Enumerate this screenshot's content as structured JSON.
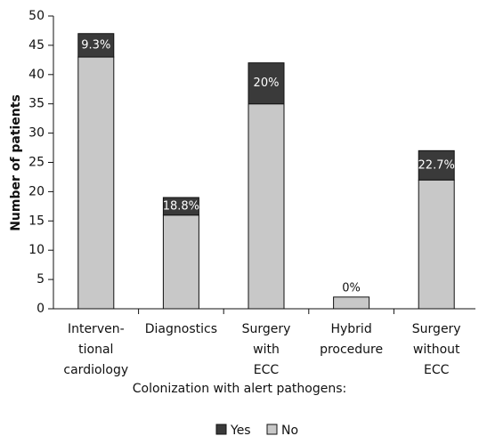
{
  "chart_data": {
    "type": "stacked-bar",
    "ylabel": "Number of patients",
    "categories": [
      [
        "Interven-",
        "tional",
        "cardiology"
      ],
      [
        "Diagnostics"
      ],
      [
        "Surgery",
        "with",
        "ECC"
      ],
      [
        "Hybrid",
        "procedure"
      ],
      [
        "Surgery",
        "without",
        "ECC"
      ]
    ],
    "series": [
      {
        "name": "No",
        "color": "#c8c8c8",
        "values": [
          43,
          16,
          35,
          2,
          22
        ]
      },
      {
        "name": "Yes",
        "color": "#3a3a3a",
        "values": [
          4,
          3,
          7,
          0,
          5
        ]
      }
    ],
    "annotations": [
      "9.3%",
      "18.8%",
      "20%",
      "0%",
      "22.7%"
    ],
    "legend_title": "Colonization with alert pathogens:",
    "ylim": [
      0,
      50
    ],
    "yticks": [
      0,
      5,
      10,
      15,
      20,
      25,
      30,
      35,
      40,
      45,
      50
    ]
  }
}
